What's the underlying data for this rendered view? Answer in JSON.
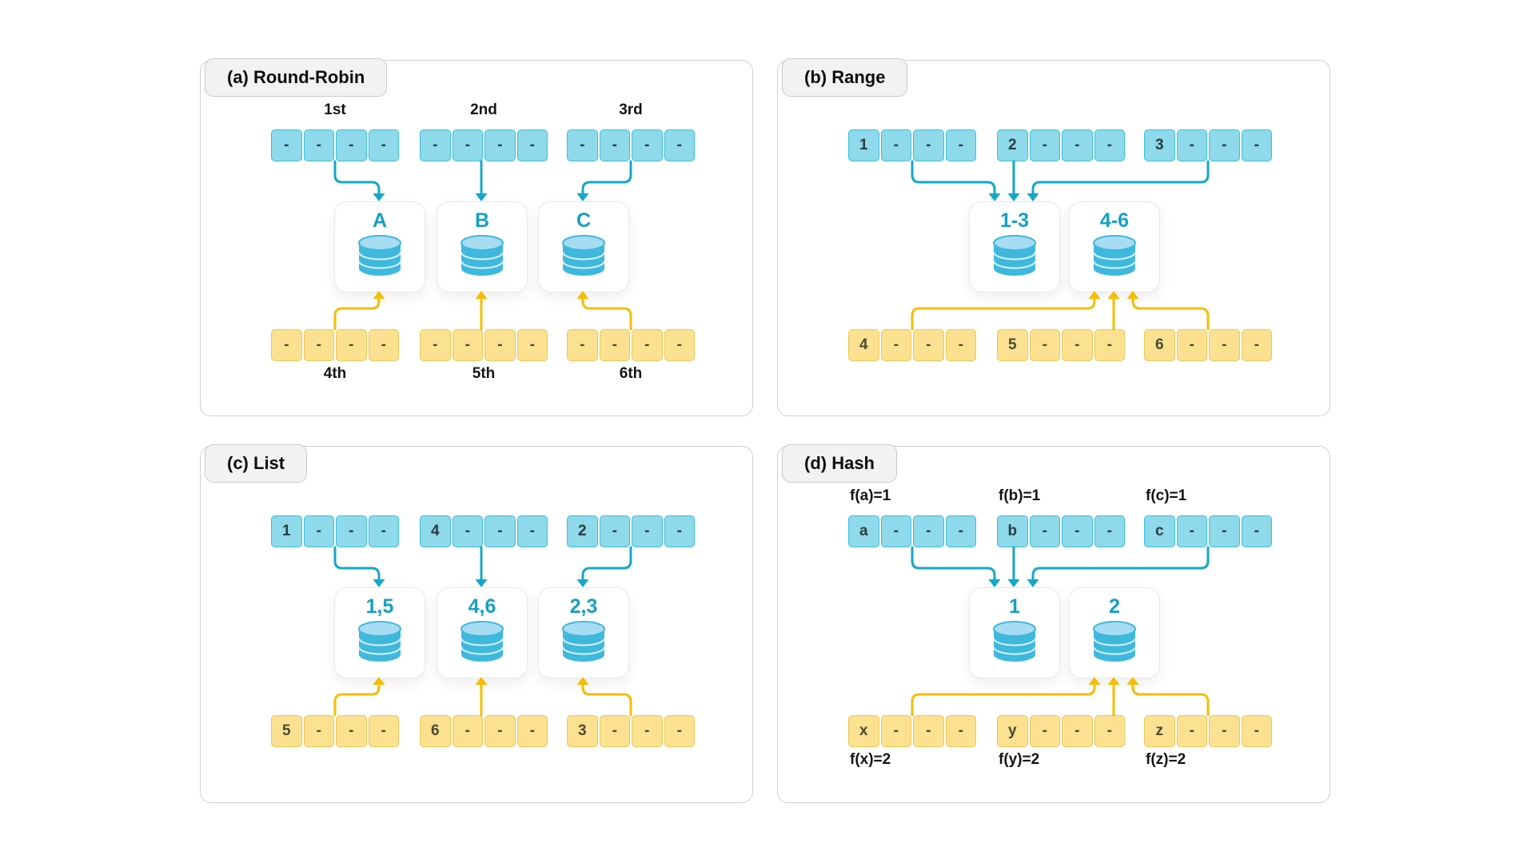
{
  "colors": {
    "accentTeal": "#14a7c8",
    "accentYellow": "#f5bd04",
    "blueFill": "#8ed9ea",
    "blueBorder": "#3bbedb",
    "yellowFill": "#fbe190",
    "yellowBorder": "#edc758",
    "nodeText": "#169fc4",
    "dbBody": "#3eb8dd",
    "dbTop": "#a8dcf3"
  },
  "panels": [
    {
      "id": "round-robin",
      "title": "(a) Round-Robin",
      "label_align": "center",
      "top_rows": [
        {
          "label": "1st",
          "cells": [
            "-",
            "-",
            "-",
            "-"
          ]
        },
        {
          "label": "2nd",
          "cells": [
            "-",
            "-",
            "-",
            "-"
          ]
        },
        {
          "label": "3rd",
          "cells": [
            "-",
            "-",
            "-",
            "-"
          ]
        }
      ],
      "nodes": [
        {
          "label": "A"
        },
        {
          "label": "B"
        },
        {
          "label": "C"
        }
      ],
      "bottom_rows": [
        {
          "label": "4th",
          "cells": [
            "-",
            "-",
            "-",
            "-"
          ]
        },
        {
          "label": "5th",
          "cells": [
            "-",
            "-",
            "-",
            "-"
          ]
        },
        {
          "label": "6th",
          "cells": [
            "-",
            "-",
            "-",
            "-"
          ]
        }
      ]
    },
    {
      "id": "range",
      "title": "(b) Range",
      "label_align": "center",
      "top_rows": [
        {
          "label": "",
          "cells": [
            "1",
            "-",
            "-",
            "-"
          ]
        },
        {
          "label": "",
          "cells": [
            "2",
            "-",
            "-",
            "-"
          ]
        },
        {
          "label": "",
          "cells": [
            "3",
            "-",
            "-",
            "-"
          ]
        }
      ],
      "nodes": [
        {
          "label": "1-3"
        },
        {
          "label": "4-6"
        }
      ],
      "bottom_rows": [
        {
          "label": "",
          "cells": [
            "4",
            "-",
            "-",
            "-"
          ]
        },
        {
          "label": "",
          "cells": [
            "5",
            "-",
            "-",
            "-"
          ]
        },
        {
          "label": "",
          "cells": [
            "6",
            "-",
            "-",
            "-"
          ]
        }
      ]
    },
    {
      "id": "list",
      "title": "(c) List",
      "label_align": "center",
      "top_rows": [
        {
          "label": "",
          "cells": [
            "1",
            "-",
            "-",
            "-"
          ]
        },
        {
          "label": "",
          "cells": [
            "4",
            "-",
            "-",
            "-"
          ]
        },
        {
          "label": "",
          "cells": [
            "2",
            "-",
            "-",
            "-"
          ]
        }
      ],
      "nodes": [
        {
          "label": "1,5"
        },
        {
          "label": "4,6"
        },
        {
          "label": "2,3"
        }
      ],
      "bottom_rows": [
        {
          "label": "",
          "cells": [
            "5",
            "-",
            "-",
            "-"
          ]
        },
        {
          "label": "",
          "cells": [
            "6",
            "-",
            "-",
            "-"
          ]
        },
        {
          "label": "",
          "cells": [
            "3",
            "-",
            "-",
            "-"
          ]
        }
      ]
    },
    {
      "id": "hash",
      "title": "(d) Hash",
      "label_align": "left",
      "top_rows": [
        {
          "label": "f(a)=1",
          "cells": [
            "a",
            "-",
            "-",
            "-"
          ]
        },
        {
          "label": "f(b)=1",
          "cells": [
            "b",
            "-",
            "-",
            "-"
          ]
        },
        {
          "label": "f(c)=1",
          "cells": [
            "c",
            "-",
            "-",
            "-"
          ]
        }
      ],
      "nodes": [
        {
          "label": "1"
        },
        {
          "label": "2"
        }
      ],
      "bottom_rows": [
        {
          "label": "f(x)=2",
          "cells": [
            "x",
            "-",
            "-",
            "-"
          ]
        },
        {
          "label": "f(y)=2",
          "cells": [
            "y",
            "-",
            "-",
            "-"
          ]
        },
        {
          "label": "f(z)=2",
          "cells": [
            "z",
            "-",
            "-",
            "-"
          ]
        }
      ]
    }
  ]
}
